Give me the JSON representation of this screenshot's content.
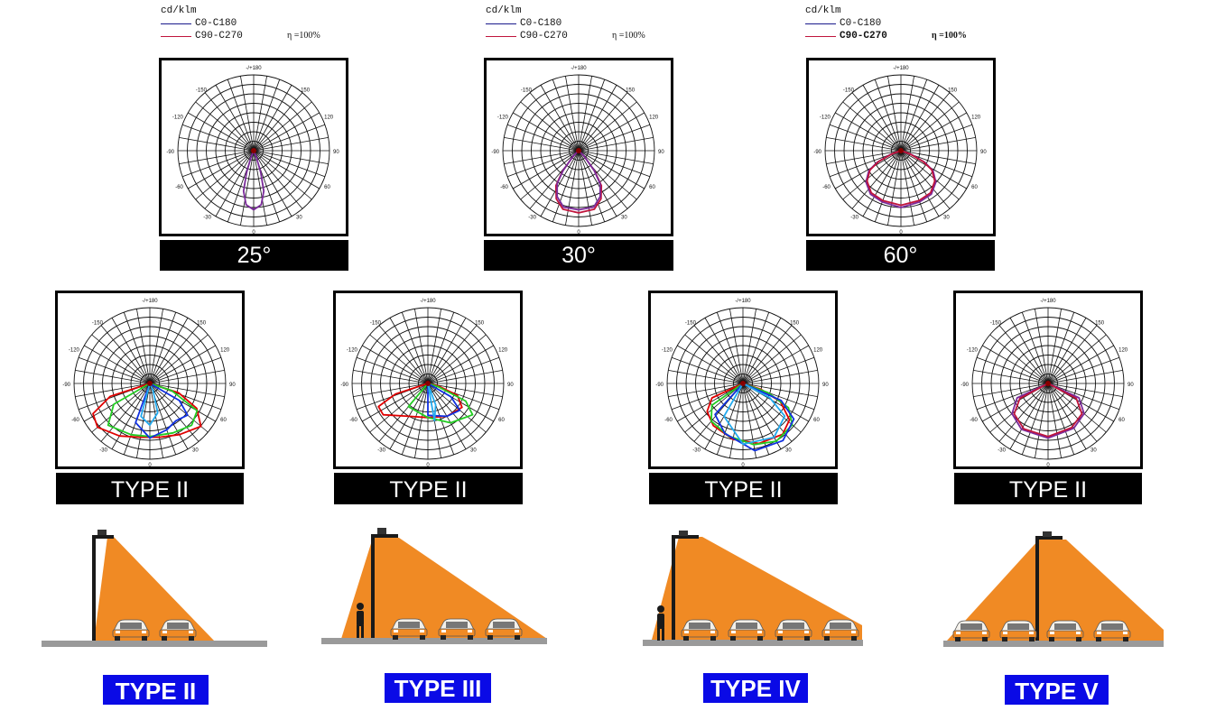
{
  "legends": [
    {
      "unit": "cd/klm",
      "series": [
        {
          "label": "C0-C180",
          "color": "#1a1a8c"
        },
        {
          "label": "C90-C270",
          "color": "#c0143c"
        }
      ],
      "efficiency": "η =100%"
    },
    {
      "unit": "cd/klm",
      "series": [
        {
          "label": "C0-C180",
          "color": "#1a1a8c"
        },
        {
          "label": "C90-C270",
          "color": "#c0143c"
        }
      ],
      "efficiency": "η =100%"
    },
    {
      "unit": "cd/klm",
      "series": [
        {
          "label": "C0-C180",
          "color": "#1a1a8c"
        },
        {
          "label": "C90-C270",
          "color": "#c0143c"
        }
      ],
      "efficiency": "η =100%"
    }
  ],
  "polar_ticks": {
    "top": "-/+180",
    "upper_left": "-150",
    "upper_right": "150",
    "mid_upper_left": "-120",
    "mid_upper_right": "120",
    "left": "-90",
    "right": "90",
    "mid_lower_left": "-60",
    "mid_lower_right": "60",
    "lower_left": "-30",
    "lower_right": "30",
    "bottom": "0"
  },
  "beam_labels": [
    "25°",
    "30°",
    "60°"
  ],
  "distribution_labels": [
    "TYPE II",
    "TYPE II",
    "TYPE II",
    "TYPE II"
  ],
  "type_badges": [
    "TYPE II",
    "TYPE III",
    "TYPE IV",
    "TYPE V"
  ],
  "colors": {
    "c0": "#1a1a8c",
    "c90": "#c0143c",
    "purple": "#7a2a9a",
    "red": "#e00000",
    "green": "#22cc22",
    "blue": "#1030e0",
    "lightblue": "#22aaee",
    "beam_orange": "#f08a24",
    "road_gray": "#9a9a9a",
    "badge_blue": "#0a0ae6"
  }
}
